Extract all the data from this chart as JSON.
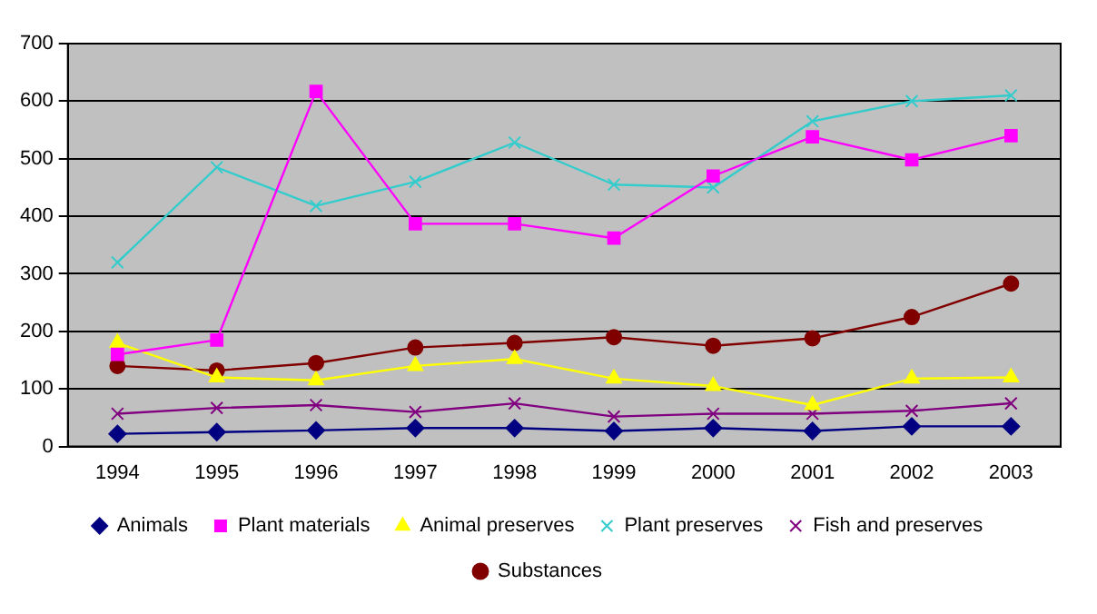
{
  "chart_data": {
    "type": "line",
    "categories": [
      "1994",
      "1995",
      "1996",
      "1997",
      "1998",
      "1999",
      "2000",
      "2001",
      "2002",
      "2003"
    ],
    "series": [
      {
        "name": "Animals",
        "color": "#000080",
        "marker": "diamond",
        "values": [
          22,
          25,
          28,
          32,
          32,
          27,
          32,
          27,
          35,
          35
        ]
      },
      {
        "name": "Plant materials",
        "color": "#ff00ff",
        "marker": "square",
        "values": [
          160,
          185,
          617,
          387,
          387,
          362,
          470,
          538,
          498,
          540
        ]
      },
      {
        "name": "Animal preserves",
        "color": "#ffff00",
        "marker": "triangle",
        "values": [
          180,
          120,
          115,
          140,
          152,
          118,
          105,
          72,
          118,
          120
        ]
      },
      {
        "name": "Plant preserves",
        "color": "#33cccc",
        "marker": "cross",
        "values": [
          320,
          485,
          418,
          460,
          528,
          455,
          450,
          565,
          600,
          610
        ]
      },
      {
        "name": "Fish and preserves",
        "color": "#800080",
        "marker": "cross",
        "values": [
          57,
          67,
          72,
          60,
          75,
          52,
          57,
          57,
          62,
          75
        ]
      },
      {
        "name": "Substances",
        "color": "#800000",
        "marker": "circle",
        "values": [
          140,
          132,
          145,
          172,
          180,
          190,
          175,
          188,
          225,
          283
        ]
      }
    ],
    "ylim": [
      0,
      700
    ],
    "yticks": [
      0,
      100,
      200,
      300,
      400,
      500,
      600,
      700
    ],
    "grid": "y",
    "legend": "bottom",
    "line_style": "solid"
  }
}
